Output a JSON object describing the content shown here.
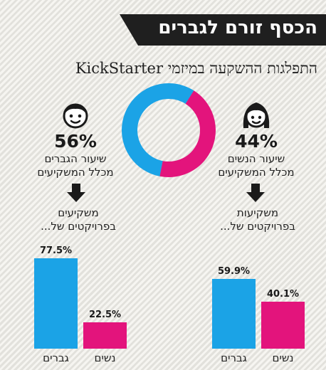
{
  "header": {
    "title": "הכסף זורם לגברים",
    "subtitle": "התפלגות ההשקעה במיזמי KickStarter"
  },
  "left_block": {
    "icon": "man-face-icon",
    "percent": "56%",
    "desc_line1": "שיעור הגברים",
    "desc_line2": "מכלל המשקיעים",
    "invest_line1": "משקיעים",
    "invest_line2": "בפרויקטים של..."
  },
  "right_block": {
    "icon": "woman-face-icon",
    "percent": "44%",
    "desc_line1": "שיעור הנשים",
    "desc_line2": "מכלל המשקיעים",
    "invest_line1": "משקיעות",
    "invest_line2": "בפרויקטים של..."
  },
  "colors": {
    "men": "#1ba3e6",
    "women": "#e3147c",
    "banner": "#1f1f1f"
  },
  "chart_data": [
    {
      "type": "pie",
      "variant": "donut",
      "categories": [
        "גברים",
        "נשים"
      ],
      "values": [
        56,
        44
      ]
    },
    {
      "type": "bar",
      "categories": [
        "גברים",
        "נשים"
      ],
      "values": [
        77.5,
        22.5
      ],
      "labels": [
        "77.5%",
        "22.5%"
      ],
      "ylim": [
        0,
        100
      ]
    },
    {
      "type": "bar",
      "categories": [
        "גברים",
        "נשים"
      ],
      "values": [
        59.9,
        40.1
      ],
      "labels": [
        "59.9%",
        "40.1%"
      ],
      "ylim": [
        0,
        100
      ]
    }
  ]
}
